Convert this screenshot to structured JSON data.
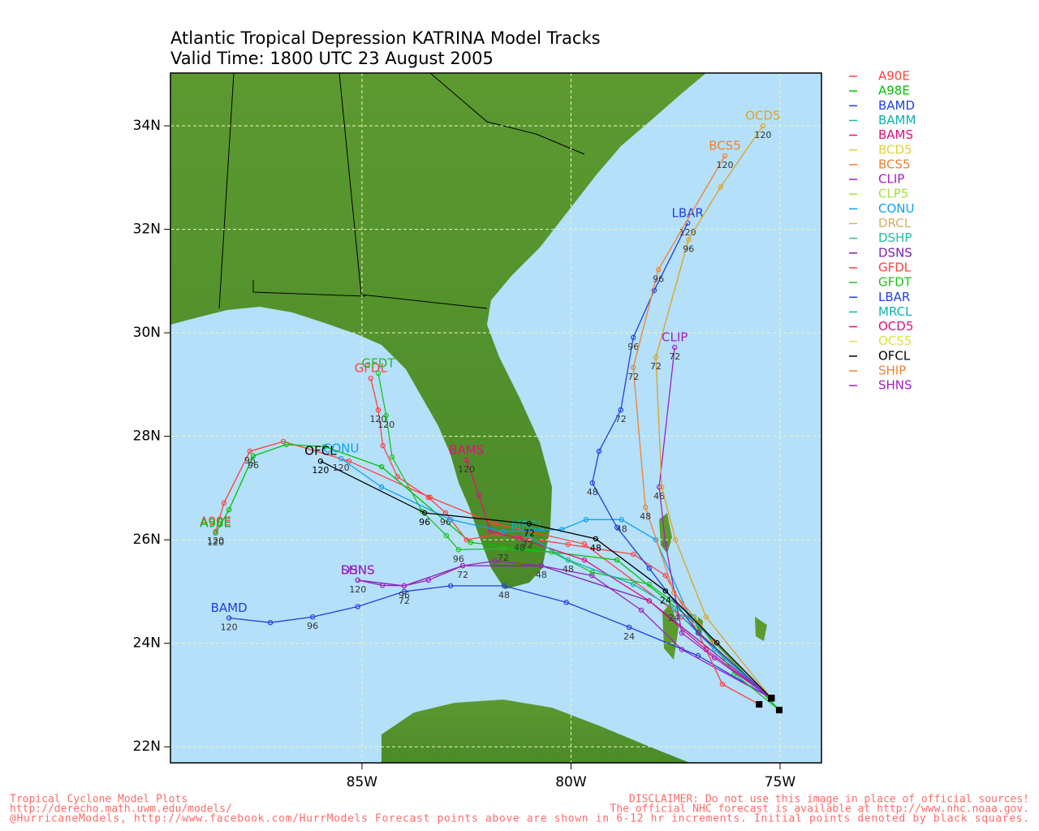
{
  "chart_data": {
    "type": "track-map",
    "title": "Atlantic Tropical Depression KATRINA Model Tracks",
    "subtitle": "Valid Time: 1800 UTC 23 August 2005",
    "xlim": [
      -89.58,
      -74.01
    ],
    "ylim": [
      21.69,
      35.02
    ],
    "xticks": [
      {
        "value": -85,
        "label": "85W"
      },
      {
        "value": -80,
        "label": "80W"
      },
      {
        "value": -75,
        "label": "75W"
      }
    ],
    "yticks": [
      {
        "value": 22,
        "label": "22N"
      },
      {
        "value": 24,
        "label": "24N"
      },
      {
        "value": 26,
        "label": "26N"
      },
      {
        "value": 28,
        "label": "28N"
      },
      {
        "value": 30,
        "label": "30N"
      },
      {
        "value": 32,
        "label": "32N"
      },
      {
        "value": 34,
        "label": "34N"
      }
    ],
    "grid": true,
    "legend": [
      {
        "name": "A90E",
        "color": "#ff4040"
      },
      {
        "name": "A98E",
        "color": "#00c000"
      },
      {
        "name": "BAMD",
        "color": "#2040e0"
      },
      {
        "name": "BAMM",
        "color": "#10b0b0"
      },
      {
        "name": "BAMS",
        "color": "#e01080"
      },
      {
        "name": "BCD5",
        "color": "#e0d040"
      },
      {
        "name": "BCS5",
        "color": "#f08030"
      },
      {
        "name": "CLIP",
        "color": "#a020c0"
      },
      {
        "name": "CLP5",
        "color": "#a0e040"
      },
      {
        "name": "CONU",
        "color": "#10a0f0"
      },
      {
        "name": "DRCL",
        "color": "#d0b060"
      },
      {
        "name": "DSHP",
        "color": "#20c0a0"
      },
      {
        "name": "DSNS",
        "color": "#8020b0"
      },
      {
        "name": "GFDL",
        "color": "#ff4040"
      },
      {
        "name": "GFDT",
        "color": "#20c020"
      },
      {
        "name": "LBAR",
        "color": "#2040e0"
      },
      {
        "name": "MRCL",
        "color": "#10b0b0"
      },
      {
        "name": "OCD5",
        "color": "#e01080"
      },
      {
        "name": "OCS5",
        "color": "#e0e040"
      },
      {
        "name": "OFCL",
        "color": "#000000"
      },
      {
        "name": "SHIP",
        "color": "#f08030"
      },
      {
        "name": "SHNS",
        "color": "#a020c0"
      }
    ],
    "series": [
      {
        "name": "A90E",
        "color": "#ff4040",
        "x": [
          -75.21,
          -77.35,
          -79.68,
          -81.82,
          -83.37,
          -85.31,
          -86.88,
          -87.68,
          -88.3,
          -88.5
        ],
        "values": [
          22.94,
          24.51,
          25.92,
          26.31,
          26.82,
          27.52,
          27.9,
          27.71,
          26.71,
          26.16
        ],
        "hours": [
          null,
          null,
          null,
          null,
          null,
          null,
          null,
          96,
          null,
          120
        ]
      },
      {
        "name": "A98E",
        "color": "#00c000",
        "x": [
          -75.02,
          -76.96,
          -78.9,
          -80.84,
          -82.4,
          -84.53,
          -85.89,
          -86.81,
          -87.6,
          -88.18,
          -88.5
        ],
        "values": [
          22.71,
          24.35,
          25.61,
          25.8,
          25.95,
          27.41,
          27.8,
          27.84,
          27.62,
          26.58,
          26.13
        ],
        "hours": [
          null,
          null,
          null,
          null,
          null,
          null,
          null,
          null,
          96,
          null,
          120
        ]
      },
      {
        "name": "BAMD",
        "color": "#2040e0",
        "x": [
          -75.21,
          -76.96,
          -78.61,
          -80.11,
          -81.6,
          -82.88,
          -83.99,
          -85.1,
          -86.18,
          -87.19,
          -88.18
        ],
        "values": [
          22.94,
          23.76,
          24.31,
          24.79,
          25.11,
          25.11,
          25.0,
          24.71,
          24.51,
          24.4,
          24.49
        ],
        "hours": [
          null,
          null,
          24,
          null,
          48,
          null,
          72,
          null,
          96,
          null,
          120
        ]
      },
      {
        "name": "DSNS",
        "color": "#8020b0",
        "x": [
          -75.21,
          -78.13,
          -80.71,
          -82.59,
          -83.99,
          -85.1
        ],
        "values": [
          22.94,
          24.82,
          25.5,
          25.5,
          25.11,
          25.22
        ],
        "hours": [
          null,
          null,
          null,
          null,
          null,
          null
        ]
      },
      {
        "name": "SHNS",
        "color": "#a020c0",
        "x": [
          -75.21,
          -77.35,
          -78.32,
          -79.5,
          -80.71,
          -81.82,
          -82.59,
          -83.41,
          -83.99,
          -84.51,
          -85.1
        ],
        "values": [
          22.94,
          23.88,
          24.64,
          25.31,
          25.5,
          25.59,
          25.5,
          25.22,
          25.11,
          25.12,
          25.22
        ],
        "hours": [
          null,
          null,
          null,
          null,
          48,
          null,
          72,
          null,
          96,
          null,
          120
        ]
      },
      {
        "name": "GFDL",
        "color": "#ff4040",
        "x": [
          -75.5,
          -76.38,
          -76.96,
          -77.74,
          -78.51,
          -80.07,
          -81.72,
          -82.5,
          -83.0,
          -83.41,
          -84.15,
          -84.5,
          -84.61,
          -84.79
        ],
        "values": [
          22.82,
          23.21,
          24.2,
          25.31,
          25.72,
          25.91,
          26.11,
          26.0,
          26.52,
          26.82,
          27.22,
          27.82,
          28.51,
          29.12
        ],
        "hours": [
          null,
          null,
          null,
          null,
          null,
          null,
          null,
          null,
          96,
          null,
          null,
          null,
          120,
          null
        ]
      },
      {
        "name": "GFDT",
        "color": "#20c020",
        "x": [
          -75.02,
          -76.09,
          -77.06,
          -78.13,
          -79.49,
          -80.46,
          -81.62,
          -82.69,
          -82.98,
          -83.56,
          -84.28,
          -84.42,
          -84.61
        ],
        "values": [
          22.71,
          23.41,
          24.51,
          25.14,
          25.37,
          25.76,
          25.83,
          25.81,
          26.08,
          26.55,
          27.6,
          28.4,
          29.22
        ],
        "hours": [
          null,
          null,
          null,
          null,
          null,
          null,
          72,
          96,
          null,
          null,
          null,
          120,
          null
        ]
      },
      {
        "name": "BAMS",
        "color": "#e01080",
        "x": [
          -75.21,
          -76.77,
          -78.13,
          -79.68,
          -81.23,
          -81.93,
          -82.2,
          -82.5
        ],
        "values": [
          22.94,
          23.88,
          24.82,
          25.61,
          26.03,
          26.16,
          26.86,
          27.54
        ],
        "hours": [
          null,
          null,
          null,
          null,
          48,
          null,
          null,
          120
        ]
      },
      {
        "name": "MRCL",
        "color": "#10b0b0",
        "x": [
          -75.21,
          -76.57,
          -77.54,
          -78.51,
          -80.07,
          -81.04
        ],
        "values": [
          22.94,
          23.88,
          24.67,
          25.14,
          25.61,
          26.08
        ],
        "hours": [
          null,
          null,
          24,
          null,
          48,
          72
        ]
      },
      {
        "name": "CONU",
        "color": "#10a0f0",
        "x": [
          -75.21,
          -77.16,
          -77.97,
          -78.79,
          -79.64,
          -80.22,
          -81.62,
          -82.88,
          -84.53,
          -85.5
        ],
        "values": [
          22.94,
          24.51,
          26.0,
          26.39,
          26.39,
          26.2,
          26.16,
          26.39,
          27.02,
          27.57
        ],
        "hours": [
          null,
          null,
          null,
          48,
          null,
          null,
          null,
          null,
          null,
          120
        ]
      },
      {
        "name": "LBAR",
        "color": "#2040e0",
        "x": [
          -75.21,
          -76.96,
          -78.13,
          -78.9,
          -79.49,
          -79.33,
          -78.81,
          -78.51,
          -78.01,
          -77.21
        ],
        "values": [
          22.94,
          24.2,
          25.45,
          26.24,
          27.1,
          27.71,
          28.51,
          29.91,
          30.82,
          32.12
        ],
        "hours": [
          null,
          null,
          null,
          null,
          48,
          null,
          72,
          96,
          null,
          120
        ]
      },
      {
        "name": "CLIP",
        "color": "#a020c0",
        "x": [
          -75.21,
          -76.57,
          -77.35,
          -77.74,
          -77.89,
          -77.52
        ],
        "values": [
          22.94,
          23.72,
          24.2,
          25.92,
          27.02,
          29.72
        ],
        "hours": [
          null,
          null,
          null,
          null,
          48,
          72
        ]
      },
      {
        "name": "BCS5",
        "color": "#f08030",
        "x": [
          -75.21,
          -76.57,
          -77.54,
          -78.22,
          -78.51,
          -77.91,
          -76.32
        ],
        "values": [
          22.94,
          24.04,
          24.98,
          26.63,
          29.33,
          31.22,
          33.42
        ],
        "hours": [
          null,
          null,
          null,
          48,
          72,
          96,
          120
        ]
      },
      {
        "name": "OCD5",
        "color": "#e0a020",
        "x": [
          -75.21,
          -76.77,
          -77.5,
          -77.83,
          -77.97,
          -77.19,
          -76.42,
          -75.41
        ],
        "values": [
          22.94,
          24.51,
          26.0,
          27.02,
          29.53,
          31.8,
          32.82,
          34.0
        ],
        "hours": [
          null,
          null,
          null,
          null,
          72,
          96,
          null,
          120
        ]
      },
      {
        "name": "OFCL",
        "color": "#000000",
        "x": [
          -75.21,
          -76.51,
          -77.74,
          -79.41,
          -81.0,
          -83.5,
          -85.99
        ],
        "values": [
          22.94,
          24.01,
          25.01,
          26.02,
          26.31,
          26.52,
          27.52
        ],
        "hours": [
          null,
          null,
          24,
          48,
          72,
          96,
          120
        ]
      }
    ],
    "footer_left": [
      "Tropical Cyclone Model Plots",
      "http://derecho.math.uwm.edu/models/",
      "@HurricaneModels, http://www.facebook.com/HurrModels  Forecast points above are shown in 6-12 hr increments. Initial points denoted by black squares."
    ],
    "footer_right": [
      "DISCLAIMER: Do not use this image in place of official sources!",
      "The official NHC forecast is available at http://www.nhc.noaa.gov."
    ]
  }
}
